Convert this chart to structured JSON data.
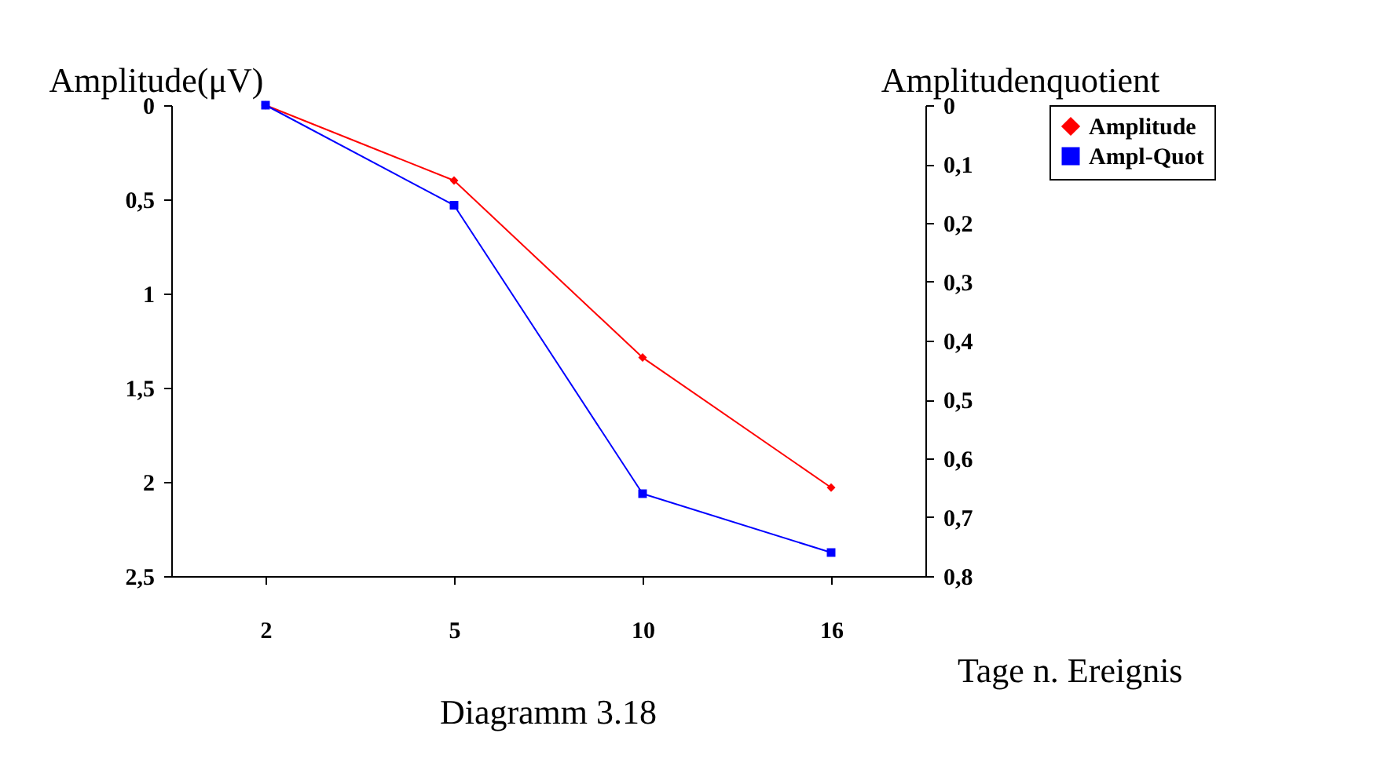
{
  "chart_data": {
    "type": "line",
    "ylabel": "Amplitude(μV)",
    "y2label": "Amplitudenquotient",
    "xlabel": "Tage n. Ereignis",
    "annotations": [
      "Diagramm 3.18"
    ],
    "categories": [
      "2",
      "5",
      "10",
      "16"
    ],
    "series": [
      {
        "name": "Amplitude",
        "color": "#ff0000",
        "marker": "diamond",
        "values": [
          0,
          0.4,
          1.34,
          2.03
        ]
      },
      {
        "name": "Ampl-Quot",
        "color": "#0000ff",
        "marker": "square",
        "axis": "y2",
        "values": [
          0,
          0.17,
          0.66,
          0.76
        ]
      }
    ],
    "ylim": [
      2.5,
      0
    ],
    "yticks": [
      0,
      {
        "value": 0.5,
        "label": "0,5"
      },
      1,
      {
        "value": 1.5,
        "label": "1,5"
      },
      2,
      {
        "value": 2.5,
        "label": "2,5"
      }
    ],
    "y2lim": [
      0.8,
      0
    ],
    "y2ticks": [
      0,
      {
        "value": 0.1,
        "label": "0,1"
      },
      {
        "value": 0.2,
        "label": "0,2"
      },
      {
        "value": 0.3,
        "label": "0,3"
      },
      {
        "value": 0.4,
        "label": "0,4"
      },
      {
        "value": 0.5,
        "label": "0,5"
      },
      {
        "value": 0.6,
        "label": "0,6"
      },
      {
        "value": 0.7,
        "label": "0,7"
      },
      {
        "value": 0.8,
        "label": "0,8"
      }
    ],
    "legend": "right"
  }
}
